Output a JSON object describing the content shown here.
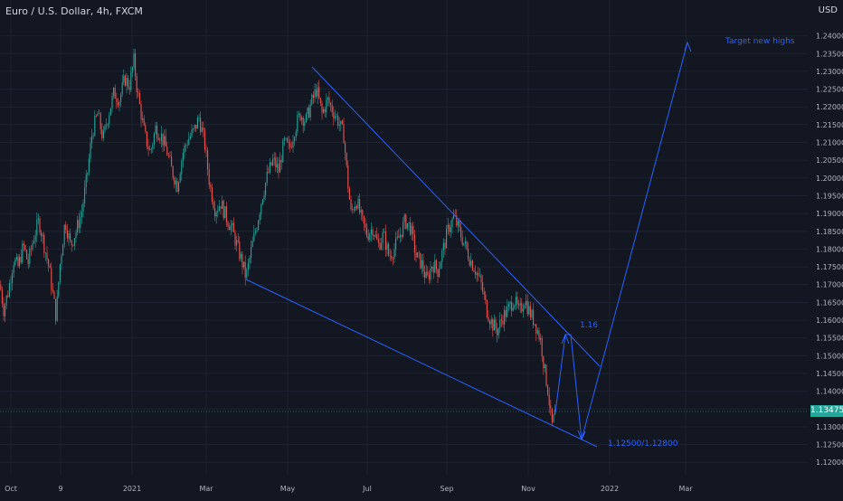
{
  "header": {
    "title": "Euro / U.S. Dollar, 4h, FXCM",
    "currency": "USD"
  },
  "current_price": "1.13475",
  "colors": {
    "background": "#131722",
    "up": "#26a69a",
    "down": "#ef5350",
    "drawing": "#2962ff"
  },
  "chart_data": {
    "type": "candlestick",
    "y_ticks": [
      "1.24000",
      "1.23500",
      "1.23000",
      "1.22500",
      "1.22000",
      "1.21500",
      "1.21000",
      "1.20500",
      "1.20000",
      "1.19500",
      "1.19000",
      "1.18500",
      "1.18000",
      "1.17500",
      "1.17000",
      "1.16500",
      "1.16000",
      "1.15500",
      "1.15000",
      "1.14500",
      "1.14000",
      "1.13500",
      "1.13000",
      "1.12500",
      "1.12000"
    ],
    "x_ticks": [
      "Oct",
      "9",
      "2021",
      "Mar",
      "May",
      "Jul",
      "Sep",
      "Nov",
      "2022",
      "Mar"
    ],
    "ylim": [
      1.1165,
      1.2455
    ],
    "price_series": [
      {
        "t": 0,
        "p": 1.17
      },
      {
        "t": 4,
        "p": 1.163
      },
      {
        "t": 9,
        "p": 1.168
      },
      {
        "t": 15,
        "p": 1.177
      },
      {
        "t": 20,
        "p": 1.175
      },
      {
        "t": 26,
        "p": 1.181
      },
      {
        "t": 31,
        "p": 1.176
      },
      {
        "t": 37,
        "p": 1.183
      },
      {
        "t": 43,
        "p": 1.188
      },
      {
        "t": 48,
        "p": 1.182
      },
      {
        "t": 54,
        "p": 1.175
      },
      {
        "t": 58,
        "p": 1.168
      },
      {
        "t": 62,
        "p": 1.161
      },
      {
        "t": 66,
        "p": 1.175
      },
      {
        "t": 72,
        "p": 1.188
      },
      {
        "t": 78,
        "p": 1.181
      },
      {
        "t": 84,
        "p": 1.185
      },
      {
        "t": 90,
        "p": 1.19
      },
      {
        "t": 96,
        "p": 1.2
      },
      {
        "t": 102,
        "p": 1.213
      },
      {
        "t": 108,
        "p": 1.218
      },
      {
        "t": 114,
        "p": 1.211
      },
      {
        "t": 120,
        "p": 1.218
      },
      {
        "t": 126,
        "p": 1.224
      },
      {
        "t": 132,
        "p": 1.222
      },
      {
        "t": 138,
        "p": 1.228
      },
      {
        "t": 143,
        "p": 1.226
      },
      {
        "t": 148,
        "p": 1.233
      },
      {
        "t": 152,
        "p": 1.224
      },
      {
        "t": 156,
        "p": 1.218
      },
      {
        "t": 160,
        "p": 1.212
      },
      {
        "t": 166,
        "p": 1.207
      },
      {
        "t": 172,
        "p": 1.214
      },
      {
        "t": 178,
        "p": 1.212
      },
      {
        "t": 184,
        "p": 1.208
      },
      {
        "t": 190,
        "p": 1.202
      },
      {
        "t": 196,
        "p": 1.198
      },
      {
        "t": 202,
        "p": 1.207
      },
      {
        "t": 208,
        "p": 1.211
      },
      {
        "t": 214,
        "p": 1.213
      },
      {
        "t": 220,
        "p": 1.217
      },
      {
        "t": 226,
        "p": 1.21
      },
      {
        "t": 232,
        "p": 1.198
      },
      {
        "t": 238,
        "p": 1.191
      },
      {
        "t": 244,
        "p": 1.193
      },
      {
        "t": 250,
        "p": 1.189
      },
      {
        "t": 256,
        "p": 1.186
      },
      {
        "t": 262,
        "p": 1.181
      },
      {
        "t": 268,
        "p": 1.176
      },
      {
        "t": 272,
        "p": 1.172
      },
      {
        "t": 278,
        "p": 1.18
      },
      {
        "t": 284,
        "p": 1.187
      },
      {
        "t": 290,
        "p": 1.195
      },
      {
        "t": 296,
        "p": 1.201
      },
      {
        "t": 302,
        "p": 1.205
      },
      {
        "t": 308,
        "p": 1.202
      },
      {
        "t": 314,
        "p": 1.21
      },
      {
        "t": 320,
        "p": 1.208
      },
      {
        "t": 326,
        "p": 1.214
      },
      {
        "t": 332,
        "p": 1.218
      },
      {
        "t": 338,
        "p": 1.216
      },
      {
        "t": 344,
        "p": 1.221
      },
      {
        "t": 350,
        "p": 1.225
      },
      {
        "t": 356,
        "p": 1.218
      },
      {
        "t": 362,
        "p": 1.222
      },
      {
        "t": 368,
        "p": 1.219
      },
      {
        "t": 374,
        "p": 1.216
      },
      {
        "t": 380,
        "p": 1.212
      },
      {
        "t": 384,
        "p": 1.2
      },
      {
        "t": 388,
        "p": 1.19
      },
      {
        "t": 394,
        "p": 1.194
      },
      {
        "t": 400,
        "p": 1.188
      },
      {
        "t": 406,
        "p": 1.184
      },
      {
        "t": 412,
        "p": 1.186
      },
      {
        "t": 418,
        "p": 1.181
      },
      {
        "t": 424,
        "p": 1.184
      },
      {
        "t": 430,
        "p": 1.178
      },
      {
        "t": 436,
        "p": 1.18
      },
      {
        "t": 442,
        "p": 1.184
      },
      {
        "t": 448,
        "p": 1.188
      },
      {
        "t": 454,
        "p": 1.186
      },
      {
        "t": 460,
        "p": 1.178
      },
      {
        "t": 466,
        "p": 1.176
      },
      {
        "t": 472,
        "p": 1.171
      },
      {
        "t": 478,
        "p": 1.176
      },
      {
        "t": 484,
        "p": 1.174
      },
      {
        "t": 490,
        "p": 1.18
      },
      {
        "t": 496,
        "p": 1.186
      },
      {
        "t": 502,
        "p": 1.189
      },
      {
        "t": 508,
        "p": 1.185
      },
      {
        "t": 514,
        "p": 1.181
      },
      {
        "t": 520,
        "p": 1.177
      },
      {
        "t": 526,
        "p": 1.174
      },
      {
        "t": 532,
        "p": 1.17
      },
      {
        "t": 538,
        "p": 1.163
      },
      {
        "t": 544,
        "p": 1.159
      },
      {
        "t": 550,
        "p": 1.157
      },
      {
        "t": 556,
        "p": 1.161
      },
      {
        "t": 562,
        "p": 1.163
      },
      {
        "t": 568,
        "p": 1.166
      },
      {
        "t": 574,
        "p": 1.162
      },
      {
        "t": 580,
        "p": 1.166
      },
      {
        "t": 586,
        "p": 1.162
      },
      {
        "t": 592,
        "p": 1.159
      },
      {
        "t": 598,
        "p": 1.154
      },
      {
        "t": 602,
        "p": 1.146
      },
      {
        "t": 606,
        "p": 1.14
      },
      {
        "t": 610,
        "p": 1.13
      },
      {
        "t": 614,
        "p": 1.134
      }
    ],
    "annotations": [
      "Target new highs",
      "1.16",
      "1.12500/1.12800"
    ]
  }
}
